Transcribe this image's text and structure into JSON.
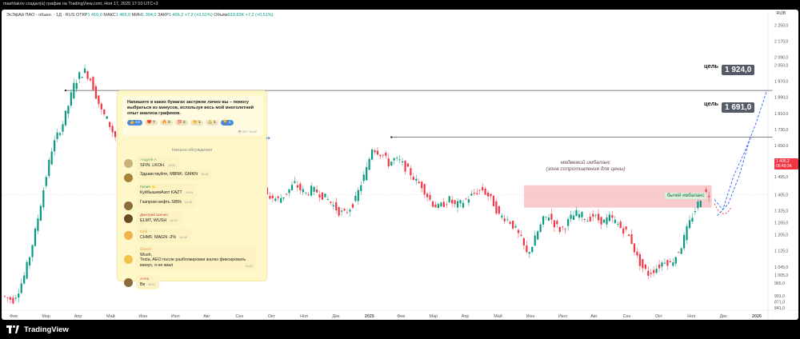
{
  "header": {
    "author_line": "mashtakov создал(а) график на TradingView.com, Ноя 17, 2025 17:10 UTC+3"
  },
  "legend": {
    "symbol": "ЭсЭфАй ПАО - обыкн. · 1Д · RUS",
    "open_label": "ОТКР",
    "open": "1 410,0",
    "high_label": "МАКС",
    "high": "1 469,0",
    "low_label": "МИН",
    "low": "1 394,0",
    "close_label": "ЗАКР",
    "close": "1 406,2",
    "change": "+7,2 (+0,51%)",
    "volume_label": "Объём",
    "volume": "919,83K",
    "volume_change": "+7,2 (+0,51%)"
  },
  "currency": "RUB",
  "brand": "TradingView",
  "price_badge": {
    "price": "1 406,2",
    "timer": "06:49:34"
  },
  "annotations": {
    "target1_label": "цель",
    "target1_value": "1 924,0",
    "target2_label": "цель",
    "target2_value": "1 691,0",
    "bear_zone_line1": "медвежий имбаланс",
    "bear_zone_line2": "(зона сопротивления для цены)",
    "bull_label": "бычий имбаланс"
  },
  "chat": {
    "post": "Напишите в каких бумагах застряли лично вы – помогу выбраться из минусов, используя весь мой многолетний опыт анализа графиков.",
    "reactions": [
      "👍 13",
      "❤️ 7",
      "🔥 2",
      "💯 2",
      "👏 1",
      "🙏 1",
      "🏆 1"
    ],
    "post_meta": "👁 667 16:02",
    "section": "Начало обсуждения",
    "messages": [
      {
        "name": "Андрей А",
        "text": "SFIN. LKOH.",
        "time": "16:07",
        "color": "#6aa84f"
      },
      {
        "name": "",
        "text": "Здравствуйте, MBNK. GMKN",
        "time": "16:14",
        "color": "#a3843a"
      },
      {
        "name": "Галия ⭐",
        "text": "КуйбышевАзот KAZT",
        "time": "16:44",
        "color": "#2e9a4c"
      },
      {
        "name": "",
        "text": "Газпром нефть SIBN",
        "time": "16:46",
        "color": "#8a6b3a"
      },
      {
        "name": "Дмитрий Шенин",
        "text": "ELMT, WUSH",
        "time": "16:23",
        "color": "#c0504d"
      },
      {
        "name": "Kirill",
        "text": "CHMF, MAGN -2%",
        "time": "16:28",
        "color": "#e69138"
      },
      {
        "name": "Олеся",
        "text": "Wush,\nTesla, AEO после разблокировки жалко фиксировать минус, я не квал",
        "time": "16:31",
        "color": "#e69138"
      },
      {
        "name": "Алла",
        "text": "Вк",
        "time": "16:41",
        "color": "#8a6b3a"
      }
    ]
  },
  "chart_data": {
    "type": "candlestick",
    "title": "",
    "xlabel": "",
    "ylabel": "",
    "ylim": [
      845,
      2295
    ],
    "y_ticks": [
      "2 250,0",
      "2 170,0",
      "2 090,0",
      "2 050,0",
      "1 970,0",
      "1 890,0",
      "1 810,0",
      "1 730,0",
      "1 650,0",
      "1 570,0",
      "1 495,0",
      "1 405,0",
      "1 325,0",
      "1 265,0",
      "1 205,0",
      "1 125,0",
      "1 045,0",
      "1 005,0",
      "965,0",
      "901,0",
      "871,0",
      "841,0"
    ],
    "y_tick_values": [
      2250,
      2170,
      2090,
      2050,
      1970,
      1890,
      1810,
      1730,
      1650,
      1570,
      1495,
      1405,
      1325,
      1265,
      1205,
      1125,
      1045,
      1005,
      965,
      901,
      871,
      841
    ],
    "x_ticks": [
      "Фев",
      "Мар",
      "Апр",
      "Май",
      "Июн",
      "Июл",
      "Авг",
      "Сен",
      "Окт",
      "Ноя",
      "Дек",
      "2025",
      "Фев",
      "Мар",
      "Апр",
      "Май",
      "Июн",
      "Июл",
      "Авг",
      "Сен",
      "Окт",
      "Ноя",
      "Дек",
      "2026"
    ],
    "price_path": [
      [
        0,
        900
      ],
      [
        2,
        890
      ],
      [
        4,
        880
      ],
      [
        6,
        930
      ],
      [
        8,
        1000
      ],
      [
        10,
        1100
      ],
      [
        12,
        1220
      ],
      [
        14,
        1360
      ],
      [
        16,
        1500
      ],
      [
        18,
        1630
      ],
      [
        20,
        1700
      ],
      [
        22,
        1760
      ],
      [
        24,
        1850
      ],
      [
        26,
        1950
      ],
      [
        28,
        2000
      ],
      [
        30,
        2020
      ],
      [
        32,
        1980
      ],
      [
        34,
        1900
      ],
      [
        36,
        1820
      ],
      [
        38,
        1780
      ],
      [
        40,
        1720
      ],
      [
        42,
        1670
      ],
      [
        44,
        1600
      ],
      [
        46,
        1560
      ],
      [
        48,
        1520
      ],
      [
        50,
        1480
      ],
      [
        52,
        1450
      ],
      [
        54,
        1420
      ],
      [
        56,
        1440
      ],
      [
        58,
        1410
      ],
      [
        60,
        1420
      ],
      [
        62,
        1390
      ],
      [
        64,
        1420
      ],
      [
        66,
        1400
      ],
      [
        68,
        1430
      ],
      [
        70,
        1400
      ],
      [
        72,
        1420
      ],
      [
        74,
        1410
      ],
      [
        76,
        1430
      ],
      [
        78,
        1400
      ],
      [
        80,
        1420
      ],
      [
        82,
        1390
      ],
      [
        84,
        1410
      ],
      [
        86,
        1420
      ],
      [
        88,
        1400
      ],
      [
        90,
        1420
      ],
      [
        92,
        1430
      ],
      [
        94,
        1450
      ],
      [
        96,
        1400
      ],
      [
        98,
        1390
      ],
      [
        100,
        1380
      ],
      [
        102,
        1400
      ],
      [
        104,
        1430
      ],
      [
        106,
        1460
      ],
      [
        108,
        1430
      ],
      [
        110,
        1410
      ],
      [
        112,
        1430
      ],
      [
        114,
        1420
      ],
      [
        116,
        1400
      ],
      [
        118,
        1380
      ],
      [
        120,
        1350
      ],
      [
        122,
        1320
      ],
      [
        124,
        1310
      ],
      [
        126,
        1340
      ],
      [
        128,
        1380
      ],
      [
        130,
        1460
      ],
      [
        132,
        1530
      ],
      [
        134,
        1640
      ],
      [
        136,
        1620
      ],
      [
        138,
        1600
      ],
      [
        140,
        1560
      ],
      [
        142,
        1580
      ],
      [
        144,
        1570
      ],
      [
        146,
        1540
      ],
      [
        148,
        1510
      ],
      [
        150,
        1470
      ],
      [
        152,
        1450
      ],
      [
        154,
        1400
      ],
      [
        156,
        1360
      ],
      [
        158,
        1340
      ],
      [
        160,
        1360
      ],
      [
        162,
        1380
      ],
      [
        164,
        1350
      ],
      [
        166,
        1360
      ],
      [
        168,
        1380
      ],
      [
        170,
        1400
      ],
      [
        172,
        1420
      ],
      [
        174,
        1430
      ],
      [
        176,
        1400
      ],
      [
        178,
        1360
      ],
      [
        180,
        1300
      ],
      [
        182,
        1290
      ],
      [
        184,
        1270
      ],
      [
        186,
        1230
      ],
      [
        188,
        1180
      ],
      [
        190,
        1110
      ],
      [
        192,
        1150
      ],
      [
        194,
        1220
      ],
      [
        196,
        1280
      ],
      [
        198,
        1300
      ],
      [
        200,
        1260
      ],
      [
        202,
        1230
      ],
      [
        204,
        1250
      ],
      [
        206,
        1290
      ],
      [
        208,
        1310
      ],
      [
        210,
        1300
      ],
      [
        212,
        1280
      ],
      [
        214,
        1300
      ],
      [
        216,
        1280
      ],
      [
        218,
        1270
      ],
      [
        220,
        1290
      ],
      [
        222,
        1270
      ],
      [
        224,
        1240
      ],
      [
        226,
        1220
      ],
      [
        228,
        1170
      ],
      [
        230,
        1090
      ],
      [
        232,
        1040
      ],
      [
        234,
        1010
      ],
      [
        236,
        1030
      ],
      [
        238,
        1050
      ],
      [
        240,
        1080
      ],
      [
        242,
        1060
      ],
      [
        244,
        1100
      ],
      [
        246,
        1150
      ],
      [
        248,
        1230
      ],
      [
        250,
        1300
      ],
      [
        252,
        1360
      ],
      [
        254,
        1420
      ],
      [
        256,
        1406
      ]
    ],
    "hlines": [
      1924,
      1691
    ],
    "bear_zone": [
      1340,
      1452
    ],
    "forecast_path": [
      [
        257,
        1380
      ],
      [
        260,
        1330
      ],
      [
        264,
        1500
      ],
      [
        268,
        1620
      ],
      [
        272,
        1760
      ],
      [
        276,
        1924
      ]
    ],
    "forecast_path2": [
      [
        258,
        1300
      ],
      [
        262,
        1360
      ],
      [
        266,
        1500
      ],
      [
        270,
        1691
      ]
    ]
  }
}
